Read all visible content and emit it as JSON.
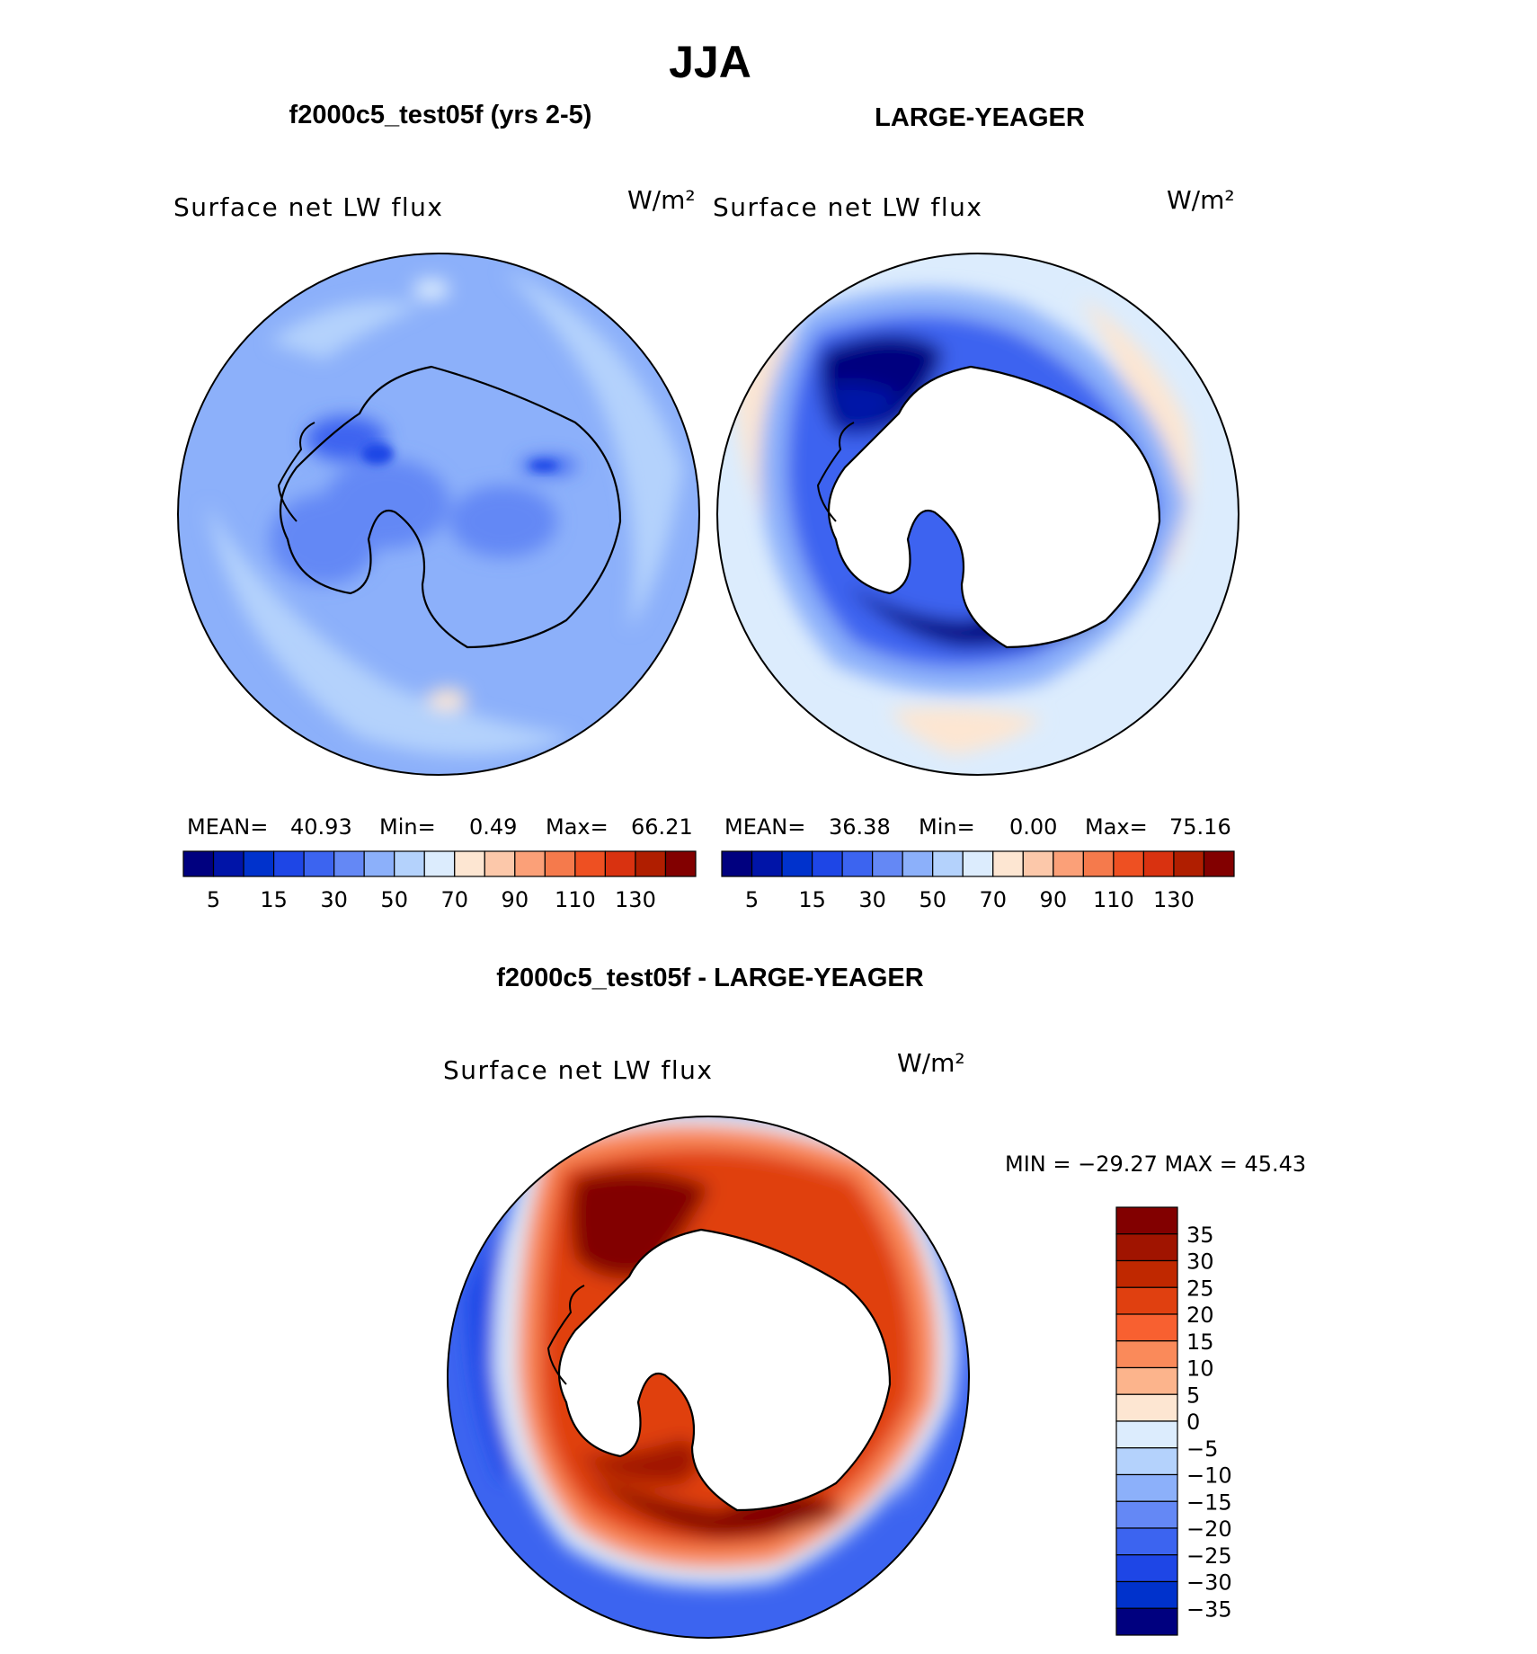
{
  "title": "JJA",
  "chart_data": [
    {
      "type": "heatmap",
      "title": "f2000c5_test05f (yrs 2-5)",
      "variable": "Surface net LW flux",
      "units": "W/m²",
      "stats": {
        "mean_label": "MEAN=",
        "mean": "40.93",
        "min_label": "Min=",
        "min": "0.49",
        "max_label": "Max=",
        "max": "66.21"
      },
      "colorbar": {
        "orientation": "horizontal",
        "levels": [
          0,
          5,
          10,
          15,
          20,
          30,
          40,
          50,
          60,
          70,
          80,
          90,
          100,
          110,
          120,
          130
        ],
        "tick_labels": [
          "5",
          "15",
          "30",
          "50",
          "70",
          "90",
          "110",
          "130"
        ],
        "colors": [
          "#00007f",
          "#0014a8",
          "#0032cc",
          "#1e46e6",
          "#3c64f0",
          "#6488f5",
          "#8cb0fa",
          "#b4d2fc",
          "#dcecfd",
          "#fde6d2",
          "#fcc8aa",
          "#fba078",
          "#f57a4c",
          "#ee5022",
          "#d93210",
          "#b01e00",
          "#820000"
        ]
      }
    },
    {
      "type": "heatmap",
      "title": "LARGE-YEAGER",
      "variable": "Surface net LW flux",
      "units": "W/m²",
      "stats": {
        "mean_label": "MEAN=",
        "mean": "36.38",
        "min_label": "Min=",
        "min": "0.00",
        "max_label": "Max=",
        "max": "75.16"
      },
      "colorbar": {
        "orientation": "horizontal",
        "levels": [
          0,
          5,
          10,
          15,
          20,
          30,
          40,
          50,
          60,
          70,
          80,
          90,
          100,
          110,
          120,
          130
        ],
        "tick_labels": [
          "5",
          "15",
          "30",
          "50",
          "70",
          "90",
          "110",
          "130"
        ],
        "colors": [
          "#00007f",
          "#0014a8",
          "#0032cc",
          "#1e46e6",
          "#3c64f0",
          "#6488f5",
          "#8cb0fa",
          "#b4d2fc",
          "#dcecfd",
          "#fde6d2",
          "#fcc8aa",
          "#fba078",
          "#f57a4c",
          "#ee5022",
          "#d93210",
          "#b01e00",
          "#820000"
        ]
      }
    },
    {
      "type": "heatmap",
      "title": "f2000c5_test05f - LARGE-YEAGER",
      "variable": "Surface net LW flux",
      "units": "W/m²",
      "stats_text": "MIN = −29.27 MAX =   45.43",
      "colorbar": {
        "orientation": "vertical",
        "levels": [
          -35,
          -30,
          -25,
          -20,
          -15,
          -10,
          -5,
          0,
          5,
          10,
          15,
          20,
          25,
          30,
          35
        ],
        "tick_labels": [
          "35",
          "30",
          "25",
          "20",
          "15",
          "10",
          "5",
          "0",
          "−5",
          "−10",
          "−15",
          "−20",
          "−25",
          "−30",
          "−35"
        ],
        "colors": [
          "#820000",
          "#a01400",
          "#c02800",
          "#e04010",
          "#f86030",
          "#fa8a5a",
          "#fcb48c",
          "#fde6d2",
          "#dcecfd",
          "#b4d2fc",
          "#8cb0fa",
          "#6488f5",
          "#3c64f0",
          "#1e46e6",
          "#0032cc",
          "#00007f"
        ]
      }
    }
  ]
}
